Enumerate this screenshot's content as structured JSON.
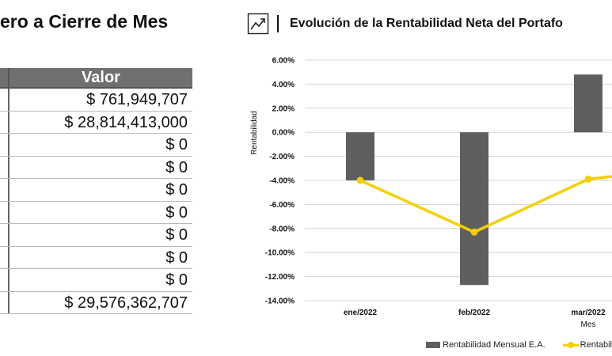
{
  "left_panel": {
    "title": "ero a Cierre de Mes",
    "table": {
      "header": "Valor",
      "rows": [
        "$ 761,949,707",
        "$ 28,814,413,000",
        "$ 0",
        "$ 0",
        "$ 0",
        "$ 0",
        "$ 0",
        "$ 0",
        "$ 0",
        "$ 29,576,362,707"
      ]
    }
  },
  "right_panel": {
    "icon": "trend-chart-icon",
    "title": "Evolución de la Rentabilidad Neta del Portafo"
  },
  "chart_data": {
    "type": "bar",
    "title": "Evolución de la Rentabilidad Neta del Portafo",
    "xlabel": "Mes",
    "ylabel": "Rentabilidad",
    "categories": [
      "ene/2022",
      "feb/2022",
      "mar/2022"
    ],
    "ylim": [
      -14,
      6
    ],
    "yticks": [
      6,
      4,
      2,
      0,
      -2,
      -4,
      -6,
      -8,
      -10,
      -12,
      -14
    ],
    "ytick_labels": [
      "6.00%",
      "4.00%",
      "2.00%",
      "0.00%",
      "-2.00%",
      "-4.00%",
      "-6.00%",
      "-8.00%",
      "-10.00%",
      "-12.00%",
      "-14.00%"
    ],
    "grid": true,
    "legend_position": "bottom",
    "series": [
      {
        "name": "Rentabilidad Mensual E.A.",
        "kind": "bar",
        "color": "#5f5f5f",
        "values": [
          -4.0,
          -12.7,
          4.8
        ]
      },
      {
        "name": "Rentabil",
        "kind": "line",
        "color": "#f5d000",
        "values": [
          -4.0,
          -8.3,
          -3.9
        ]
      }
    ],
    "line_extension_value": -3.6
  }
}
